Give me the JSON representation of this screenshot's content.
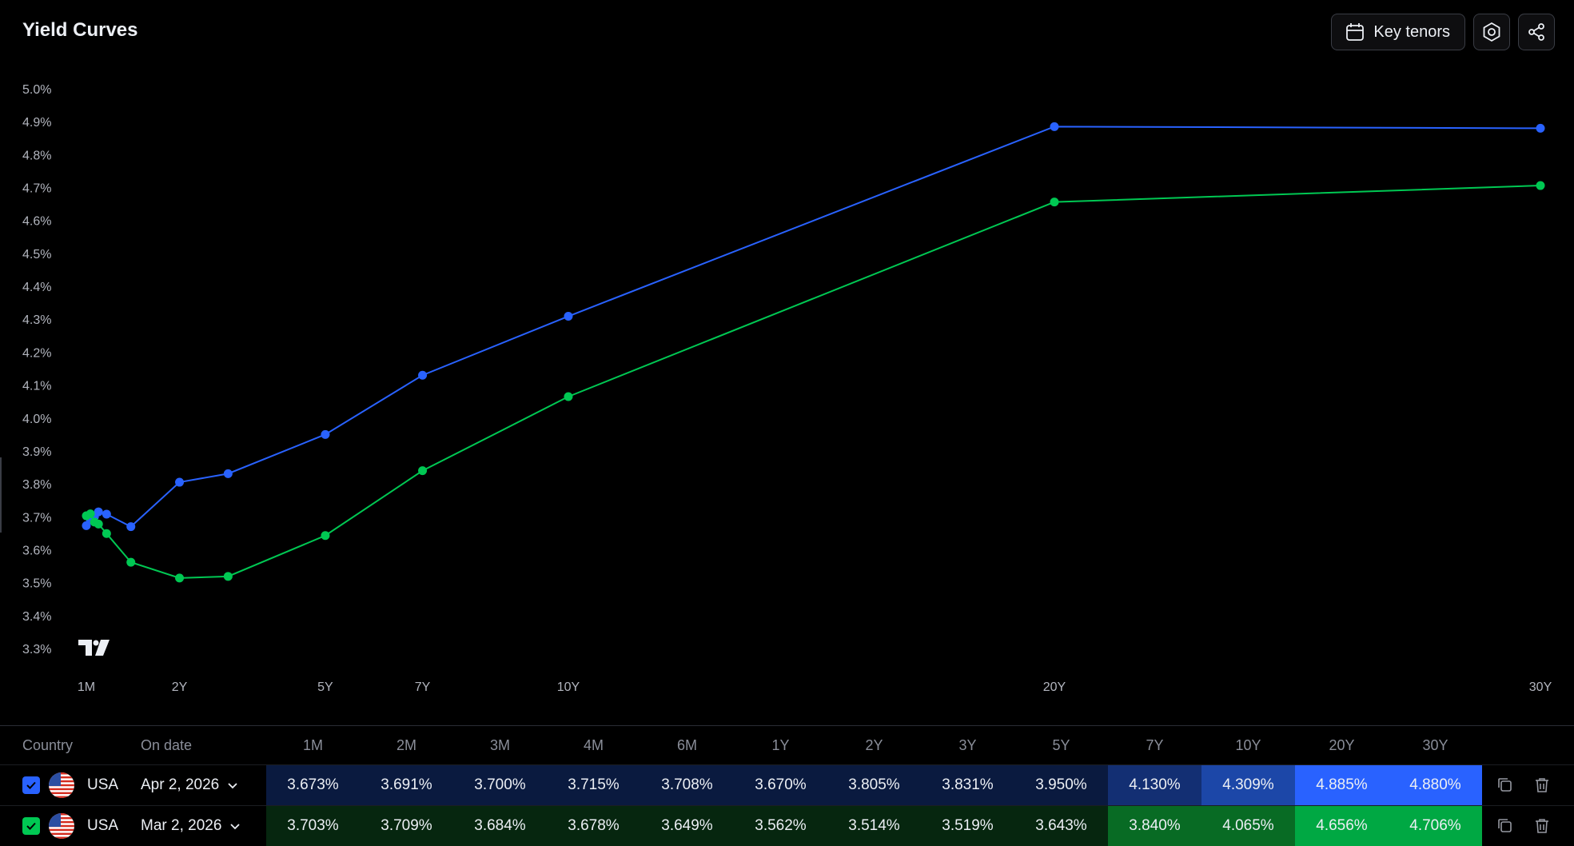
{
  "header": {
    "title": "Yield Curves",
    "key_tenors_label": "Key tenors"
  },
  "icons": {
    "calendar": "calendar-icon",
    "settings": "settings-icon",
    "share": "share-icon",
    "logo": "tradingview-logo",
    "checkbox": "check-icon",
    "flag": "us-flag-icon",
    "dropdown": "chevron-down-icon",
    "copy": "copy-icon",
    "delete": "trash-icon"
  },
  "colors": {
    "series1": "#2962ff",
    "series2": "#00c853",
    "background": "#000000"
  },
  "chart_data": {
    "type": "line",
    "title": "",
    "xlabel": "",
    "ylabel": "",
    "ylim": [
      3.3,
      5.0
    ],
    "y_ticks": [
      "5.0%",
      "4.9%",
      "4.8%",
      "4.7%",
      "4.6%",
      "4.5%",
      "4.4%",
      "4.3%",
      "4.2%",
      "4.1%",
      "4.0%",
      "3.9%",
      "3.8%",
      "3.7%",
      "3.6%",
      "3.5%",
      "3.4%",
      "3.3%"
    ],
    "x_tick_labels": [
      "1M",
      "2Y",
      "5Y",
      "7Y",
      "10Y",
      "20Y",
      "30Y"
    ],
    "x_ticks_years": [
      0.0833,
      2,
      5,
      7,
      10,
      20,
      30
    ],
    "x_years": [
      0.0833,
      0.1667,
      0.25,
      0.3333,
      0.5,
      1,
      2,
      3,
      5,
      7,
      10,
      20,
      30
    ],
    "grid": false,
    "series": [
      {
        "values": [
          3.673,
          3.691,
          3.7,
          3.715,
          3.708,
          3.67,
          3.805,
          3.831,
          3.95,
          4.13,
          4.309,
          4.885,
          4.88
        ]
      },
      {
        "values": [
          3.703,
          3.709,
          3.684,
          3.678,
          3.649,
          3.562,
          3.514,
          3.519,
          3.643,
          3.84,
          4.065,
          4.656,
          4.706
        ]
      }
    ]
  },
  "table": {
    "headers": {
      "country": "Country",
      "on_date": "On date",
      "tenors": [
        "1M",
        "2M",
        "3M",
        "4M",
        "6M",
        "1Y",
        "2Y",
        "3Y",
        "5Y",
        "7Y",
        "10Y",
        "20Y",
        "30Y"
      ]
    },
    "rows": [
      {
        "country": "USA",
        "date": "Apr 2, 2026",
        "color": "#2962ff",
        "values": [
          "3.673%",
          "3.691%",
          "3.700%",
          "3.715%",
          "3.708%",
          "3.670%",
          "3.805%",
          "3.831%",
          "3.950%",
          "4.130%",
          "4.309%",
          "4.885%",
          "4.880%"
        ],
        "cell_colors": [
          "#0a1a3f",
          "#0a1a3f",
          "#0a1a3f",
          "#0a1a3f",
          "#0a1a3f",
          "#0a1a3f",
          "#0a1a3f",
          "#0a1a3f",
          "#0a1a3f",
          "#132f73",
          "#1c47a8",
          "#2962ff",
          "#2962ff"
        ]
      },
      {
        "country": "USA",
        "date": "Mar 2, 2026",
        "color": "#00c853",
        "values": [
          "3.703%",
          "3.709%",
          "3.684%",
          "3.678%",
          "3.649%",
          "3.562%",
          "3.514%",
          "3.519%",
          "3.643%",
          "3.840%",
          "4.065%",
          "4.656%",
          "4.706%"
        ],
        "cell_colors": [
          "#06260f",
          "#06260f",
          "#06260f",
          "#06260f",
          "#06260f",
          "#06260f",
          "#06260f",
          "#06260f",
          "#06260f",
          "#086b24",
          "#086b24",
          "#00a843",
          "#00a843"
        ]
      }
    ]
  }
}
